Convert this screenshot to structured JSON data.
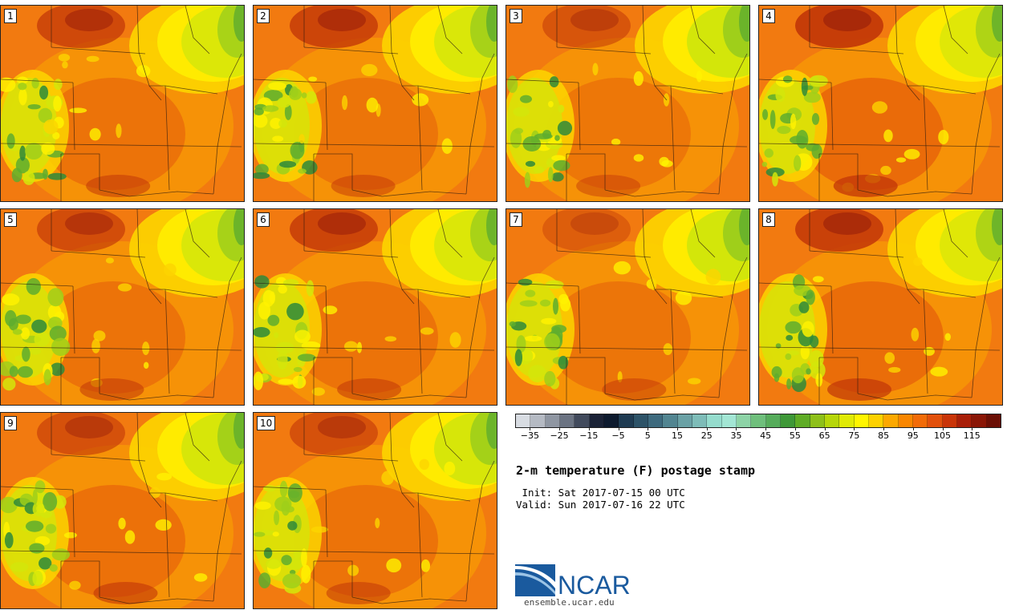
{
  "panels": [
    {
      "label": "1"
    },
    {
      "label": "2"
    },
    {
      "label": "3"
    },
    {
      "label": "4"
    },
    {
      "label": "5"
    },
    {
      "label": "6"
    },
    {
      "label": "7"
    },
    {
      "label": "8"
    },
    {
      "label": "9"
    },
    {
      "label": "10"
    }
  ],
  "colorbar": {
    "colors": [
      "#d8dce2",
      "#b5bac3",
      "#8f96a2",
      "#6b7382",
      "#414a5c",
      "#1a2236",
      "#0d1a2e",
      "#1f3b52",
      "#2d5368",
      "#3e6a7e",
      "#528591",
      "#6aa1a5",
      "#7ebcb8",
      "#95dccd",
      "#a3e6d4",
      "#8dd3a6",
      "#6fbf7c",
      "#56ac5b",
      "#3f9838",
      "#5fac26",
      "#8ec01a",
      "#b6d60a",
      "#e0ea06",
      "#fff500",
      "#fdd100",
      "#fca800",
      "#f98600",
      "#f26b08",
      "#e2500c",
      "#c93408",
      "#a81e08",
      "#8a1606",
      "#6b0f05"
    ],
    "tick_labels": [
      "−35",
      "−25",
      "−15",
      "−5",
      "5",
      "15",
      "25",
      "35",
      "45",
      "55",
      "65",
      "75",
      "85",
      "95",
      "105",
      "115"
    ]
  },
  "title": "2-m temperature (F) postage stamp",
  "init_line": " Init: Sat 2017-07-15 00 UTC",
  "valid_line": "Valid: Sun 2017-07-16 22 UTC",
  "logo": {
    "text": "NCAR",
    "site": "ensemble.ucar.edu",
    "brand_color": "#1a5a9e"
  }
}
